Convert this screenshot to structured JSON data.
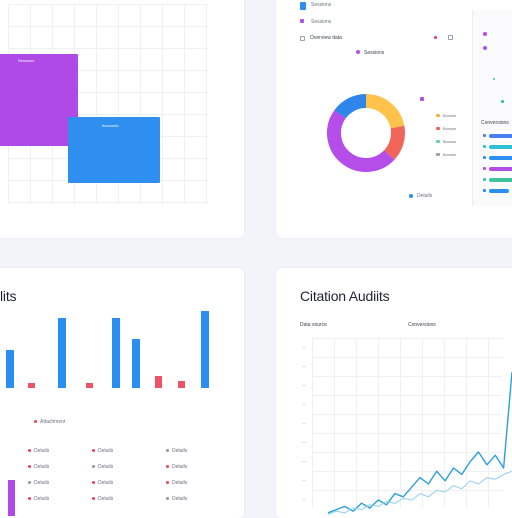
{
  "dashboard": {
    "top_left": {
      "block_a_label": "Sessions",
      "block_b_label": "Accounts",
      "colors": {
        "purple": "#b04ae6",
        "blue": "#2e8ff0"
      }
    },
    "top_right": {
      "header_label": "Sessions",
      "toolbar_label": "Overview data",
      "filter_label": "Sessions",
      "side_label": "Conversions",
      "footer_label": "Details",
      "chart_data": {
        "type": "pie",
        "style": "donut",
        "slices": [
          {
            "value": 22,
            "color": "#ffc24a"
          },
          {
            "value": 15,
            "color": "#f0645a"
          },
          {
            "value": 48,
            "color": "#b54de8"
          },
          {
            "value": 15,
            "color": "#2f86ea"
          }
        ]
      },
      "legend": [
        {
          "label": "Browse",
          "color": "#f9b24a"
        },
        {
          "label": "Browse",
          "color": "#f0645a"
        },
        {
          "label": "Browse",
          "color": "#6fcf97"
        },
        {
          "label": "Browse",
          "color": "#9aa0ad"
        }
      ],
      "side_items": [
        {
          "color": "#4a7ff0",
          "value": 0.55
        },
        {
          "color": "#2fc0d8",
          "value": 0.85
        },
        {
          "color": "#2a8ff0",
          "value": 0.7
        },
        {
          "color": "#b54de8",
          "value": 0.6
        },
        {
          "color": "#3fc29a",
          "value": 0.9
        },
        {
          "color": "#2a8ff0",
          "value": 0.45
        }
      ]
    },
    "bottom_left": {
      "title": "lits",
      "subheader": "Attachment",
      "chart_data": {
        "type": "bar",
        "values": [
          36,
          0,
          5,
          66,
          0,
          5,
          66,
          46,
          11,
          7,
          72
        ],
        "colors": [
          "#2a8ff0",
          "#ffffff",
          "#ec5466",
          "#2a8ff0",
          "#ffffff",
          "#ec5466",
          "#2a8ff0",
          "#2a8ff0",
          "#ec5466",
          "#ec5466",
          "#2a8ff0"
        ],
        "ylim": [
          0,
          75
        ]
      },
      "table": [
        [
          "Details",
          "Details",
          "Details"
        ],
        [
          "Details",
          "Details",
          "Details"
        ],
        [
          "Details",
          "Details",
          "Details"
        ],
        [
          "Details",
          "Details",
          "Details"
        ]
      ]
    },
    "bottom_right": {
      "title": "Citation Audiits",
      "label_left": "Data source",
      "label_right": "Conversions",
      "y_ticks": [
        "—",
        "—",
        "—",
        "—",
        "—",
        "—",
        "—",
        "—",
        "—"
      ],
      "chart_data": {
        "type": "line",
        "x": [
          0,
          1,
          2,
          3,
          4,
          5,
          6,
          7,
          8,
          9,
          10,
          11,
          12,
          13,
          14,
          15,
          16,
          17,
          18,
          19,
          20,
          21,
          22
        ],
        "series": [
          {
            "values": [
              2,
              4,
              6,
              3,
              8,
              5,
              10,
              7,
              14,
              12,
              18,
              24,
              20,
              28,
              22,
              30,
              26,
              34,
              40,
              32,
              38,
              30,
              90
            ],
            "color": "#2a9fd8"
          },
          {
            "values": [
              1,
              3,
              2,
              5,
              4,
              7,
              6,
              9,
              8,
              11,
              10,
              14,
              12,
              16,
              15,
              19,
              17,
              22,
              20,
              24,
              23,
              26,
              28
            ],
            "color": "#8fd0ea"
          }
        ],
        "ylim": [
          0,
          100
        ]
      }
    }
  }
}
